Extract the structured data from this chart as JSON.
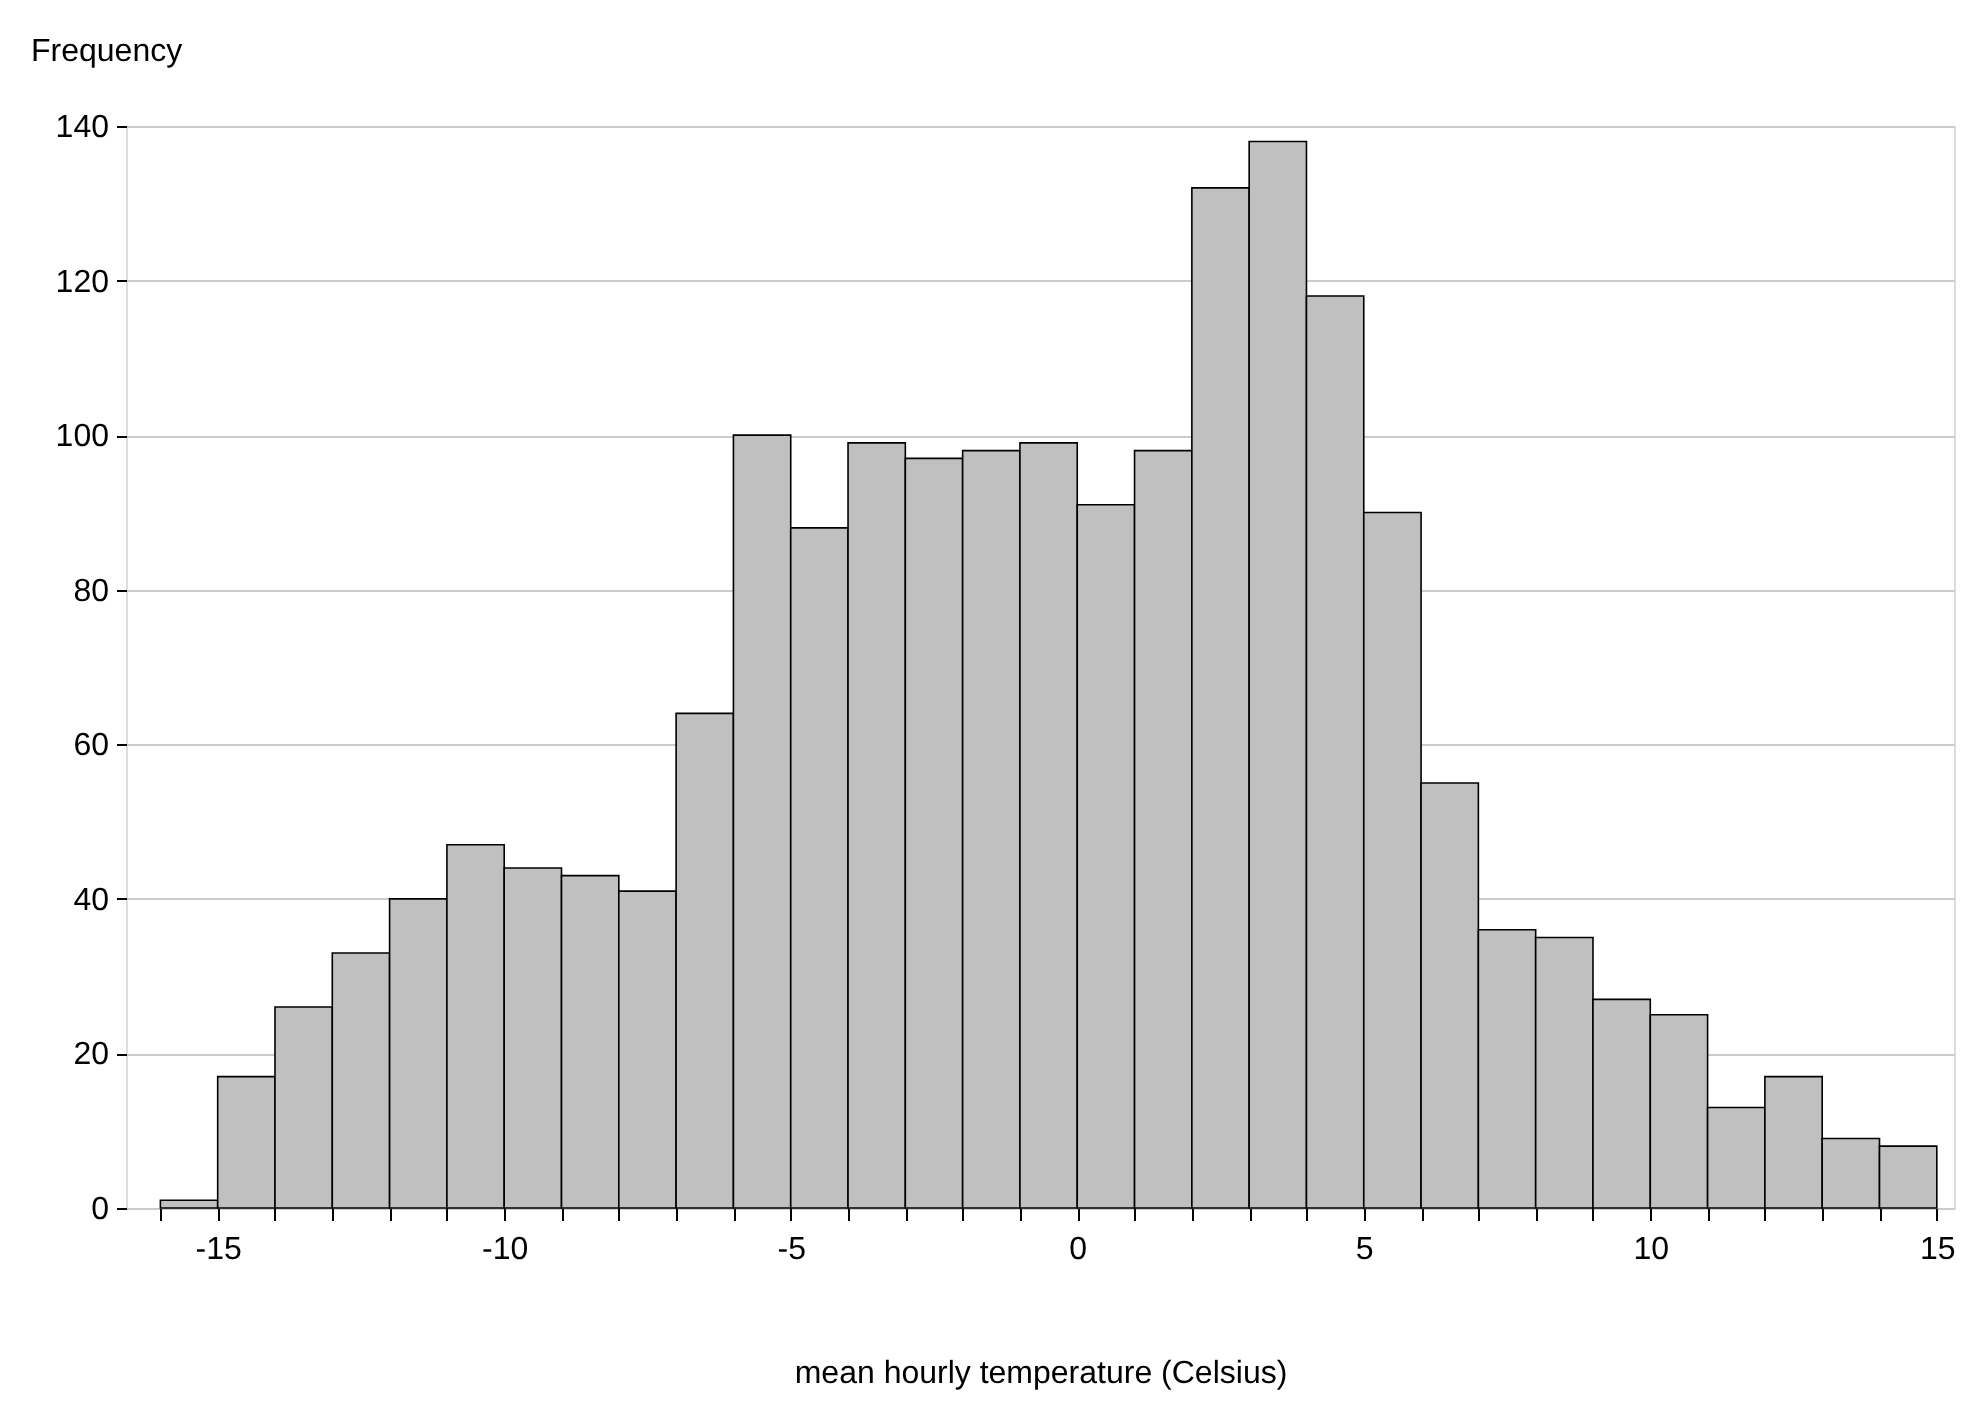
{
  "chart_data": {
    "type": "histogram",
    "xlabel": "mean hourly temperature (Celsius)",
    "ylabel": "Frequency",
    "bins": [
      -16,
      -15,
      -14,
      -13,
      -12,
      -11,
      -10,
      -9,
      -8,
      -7,
      -6,
      -5,
      -4,
      -3,
      -2,
      -1,
      0,
      1,
      2,
      3,
      4,
      5,
      6,
      7,
      8,
      9,
      10,
      11,
      12,
      13,
      14,
      15
    ],
    "values": [
      1,
      17,
      26,
      33,
      40,
      47,
      44,
      43,
      41,
      64,
      100,
      88,
      99,
      97,
      98,
      99,
      91,
      98,
      132,
      138,
      118,
      90,
      55,
      36,
      35,
      27,
      25,
      13,
      17,
      9,
      8
    ],
    "color": "#c0c0c0",
    "xlim": [
      -16.6,
      15.3
    ],
    "xticks": [
      {
        "value": -16,
        "label": null
      },
      -15,
      {
        "value": -14,
        "label": null
      },
      {
        "value": -13,
        "label": null
      },
      {
        "value": -12,
        "label": null
      },
      {
        "value": -11,
        "label": null
      },
      -10,
      {
        "value": -9,
        "label": null
      },
      {
        "value": -8,
        "label": null
      },
      {
        "value": -7,
        "label": null
      },
      {
        "value": -6,
        "label": null
      },
      -5,
      {
        "value": -4,
        "label": null
      },
      {
        "value": -3,
        "label": null
      },
      {
        "value": -2,
        "label": null
      },
      {
        "value": -1,
        "label": null
      },
      0,
      {
        "value": 1,
        "label": null
      },
      {
        "value": 2,
        "label": null
      },
      {
        "value": 3,
        "label": null
      },
      {
        "value": 4,
        "label": null
      },
      5,
      {
        "value": 6,
        "label": null
      },
      {
        "value": 7,
        "label": null
      },
      {
        "value": 8,
        "label": null
      },
      {
        "value": 9,
        "label": null
      },
      10,
      {
        "value": 11,
        "label": null
      },
      {
        "value": 12,
        "label": null
      },
      {
        "value": 13,
        "label": null
      },
      {
        "value": 14,
        "label": null
      },
      15
    ],
    "ylim": [
      0,
      140
    ],
    "yticks": [
      0,
      20,
      40,
      60,
      80,
      100,
      120,
      140
    ],
    "grid": "y"
  }
}
